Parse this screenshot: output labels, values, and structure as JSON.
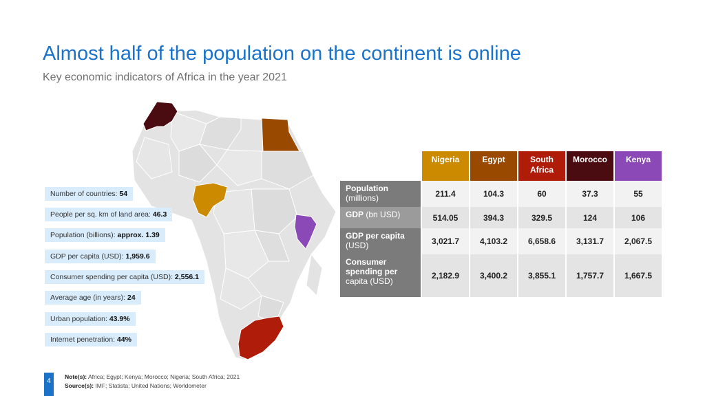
{
  "title": "Almost half of the population on the continent is online",
  "subtitle": "Key economic indicators of Africa in the year 2021",
  "facts": [
    {
      "label": "Number of countries:",
      "value": "54"
    },
    {
      "label": "People per sq. km of land area:",
      "value": "46.3"
    },
    {
      "label": "Population (billions):",
      "value": "approx. 1.39"
    },
    {
      "label": "GDP per capita (USD):",
      "value": "1,959.6"
    },
    {
      "label": "Consumer spending per capita (USD):",
      "value": "2,556.1"
    },
    {
      "label": "Average age (in years):",
      "value": "24"
    },
    {
      "label": "Urban population:",
      "value": "43.9%"
    },
    {
      "label": "Internet penetration:",
      "value": "44%"
    }
  ],
  "colors": {
    "accent": "#1a73c9",
    "fact_bg": "#d9ecfb",
    "Nigeria": "#cc8a00",
    "Egypt": "#9a4a00",
    "South Africa": "#b01c0a",
    "Morocco": "#4a0c10",
    "Kenya": "#8a49b6",
    "map_base": "#e3e3e3"
  },
  "chart_data": {
    "type": "table",
    "columns": [
      "Nigeria",
      "Egypt",
      "South Africa",
      "Morocco",
      "Kenya"
    ],
    "column_labels": [
      [
        "Nigeria"
      ],
      [
        "Egypt"
      ],
      [
        "South",
        "Africa"
      ],
      [
        "Morocco"
      ],
      [
        "Kenya"
      ]
    ],
    "rows": [
      {
        "bold": "Population",
        "rest": "(millions)",
        "values": [
          "211.4",
          "104.3",
          "60",
          "37.3",
          "55"
        ]
      },
      {
        "bold": "GDP",
        "rest": "(bn USD)",
        "values": [
          "514.05",
          "394.3",
          "329.5",
          "124",
          "106"
        ]
      },
      {
        "bold": "GDP per capita",
        "rest": "(USD)",
        "values": [
          "3,021.7",
          "4,103.2",
          "6,658.6",
          "3,131.7",
          "2,067.5"
        ]
      },
      {
        "bold": "Consumer spending per",
        "rest": "capita (USD)",
        "values": [
          "2,182.9",
          "3,400.2",
          "3,855.1",
          "1,757.7",
          "1,667.5"
        ]
      }
    ]
  },
  "footer": {
    "page": "4",
    "note_label": "Note(s):",
    "note_text": "Africa; Egypt; Kenya; Morocco; Nigeria; South Africa; 2021",
    "source_label": "Source(s):",
    "source_text": "IMF; Statista; United Nations; Worldometer"
  }
}
